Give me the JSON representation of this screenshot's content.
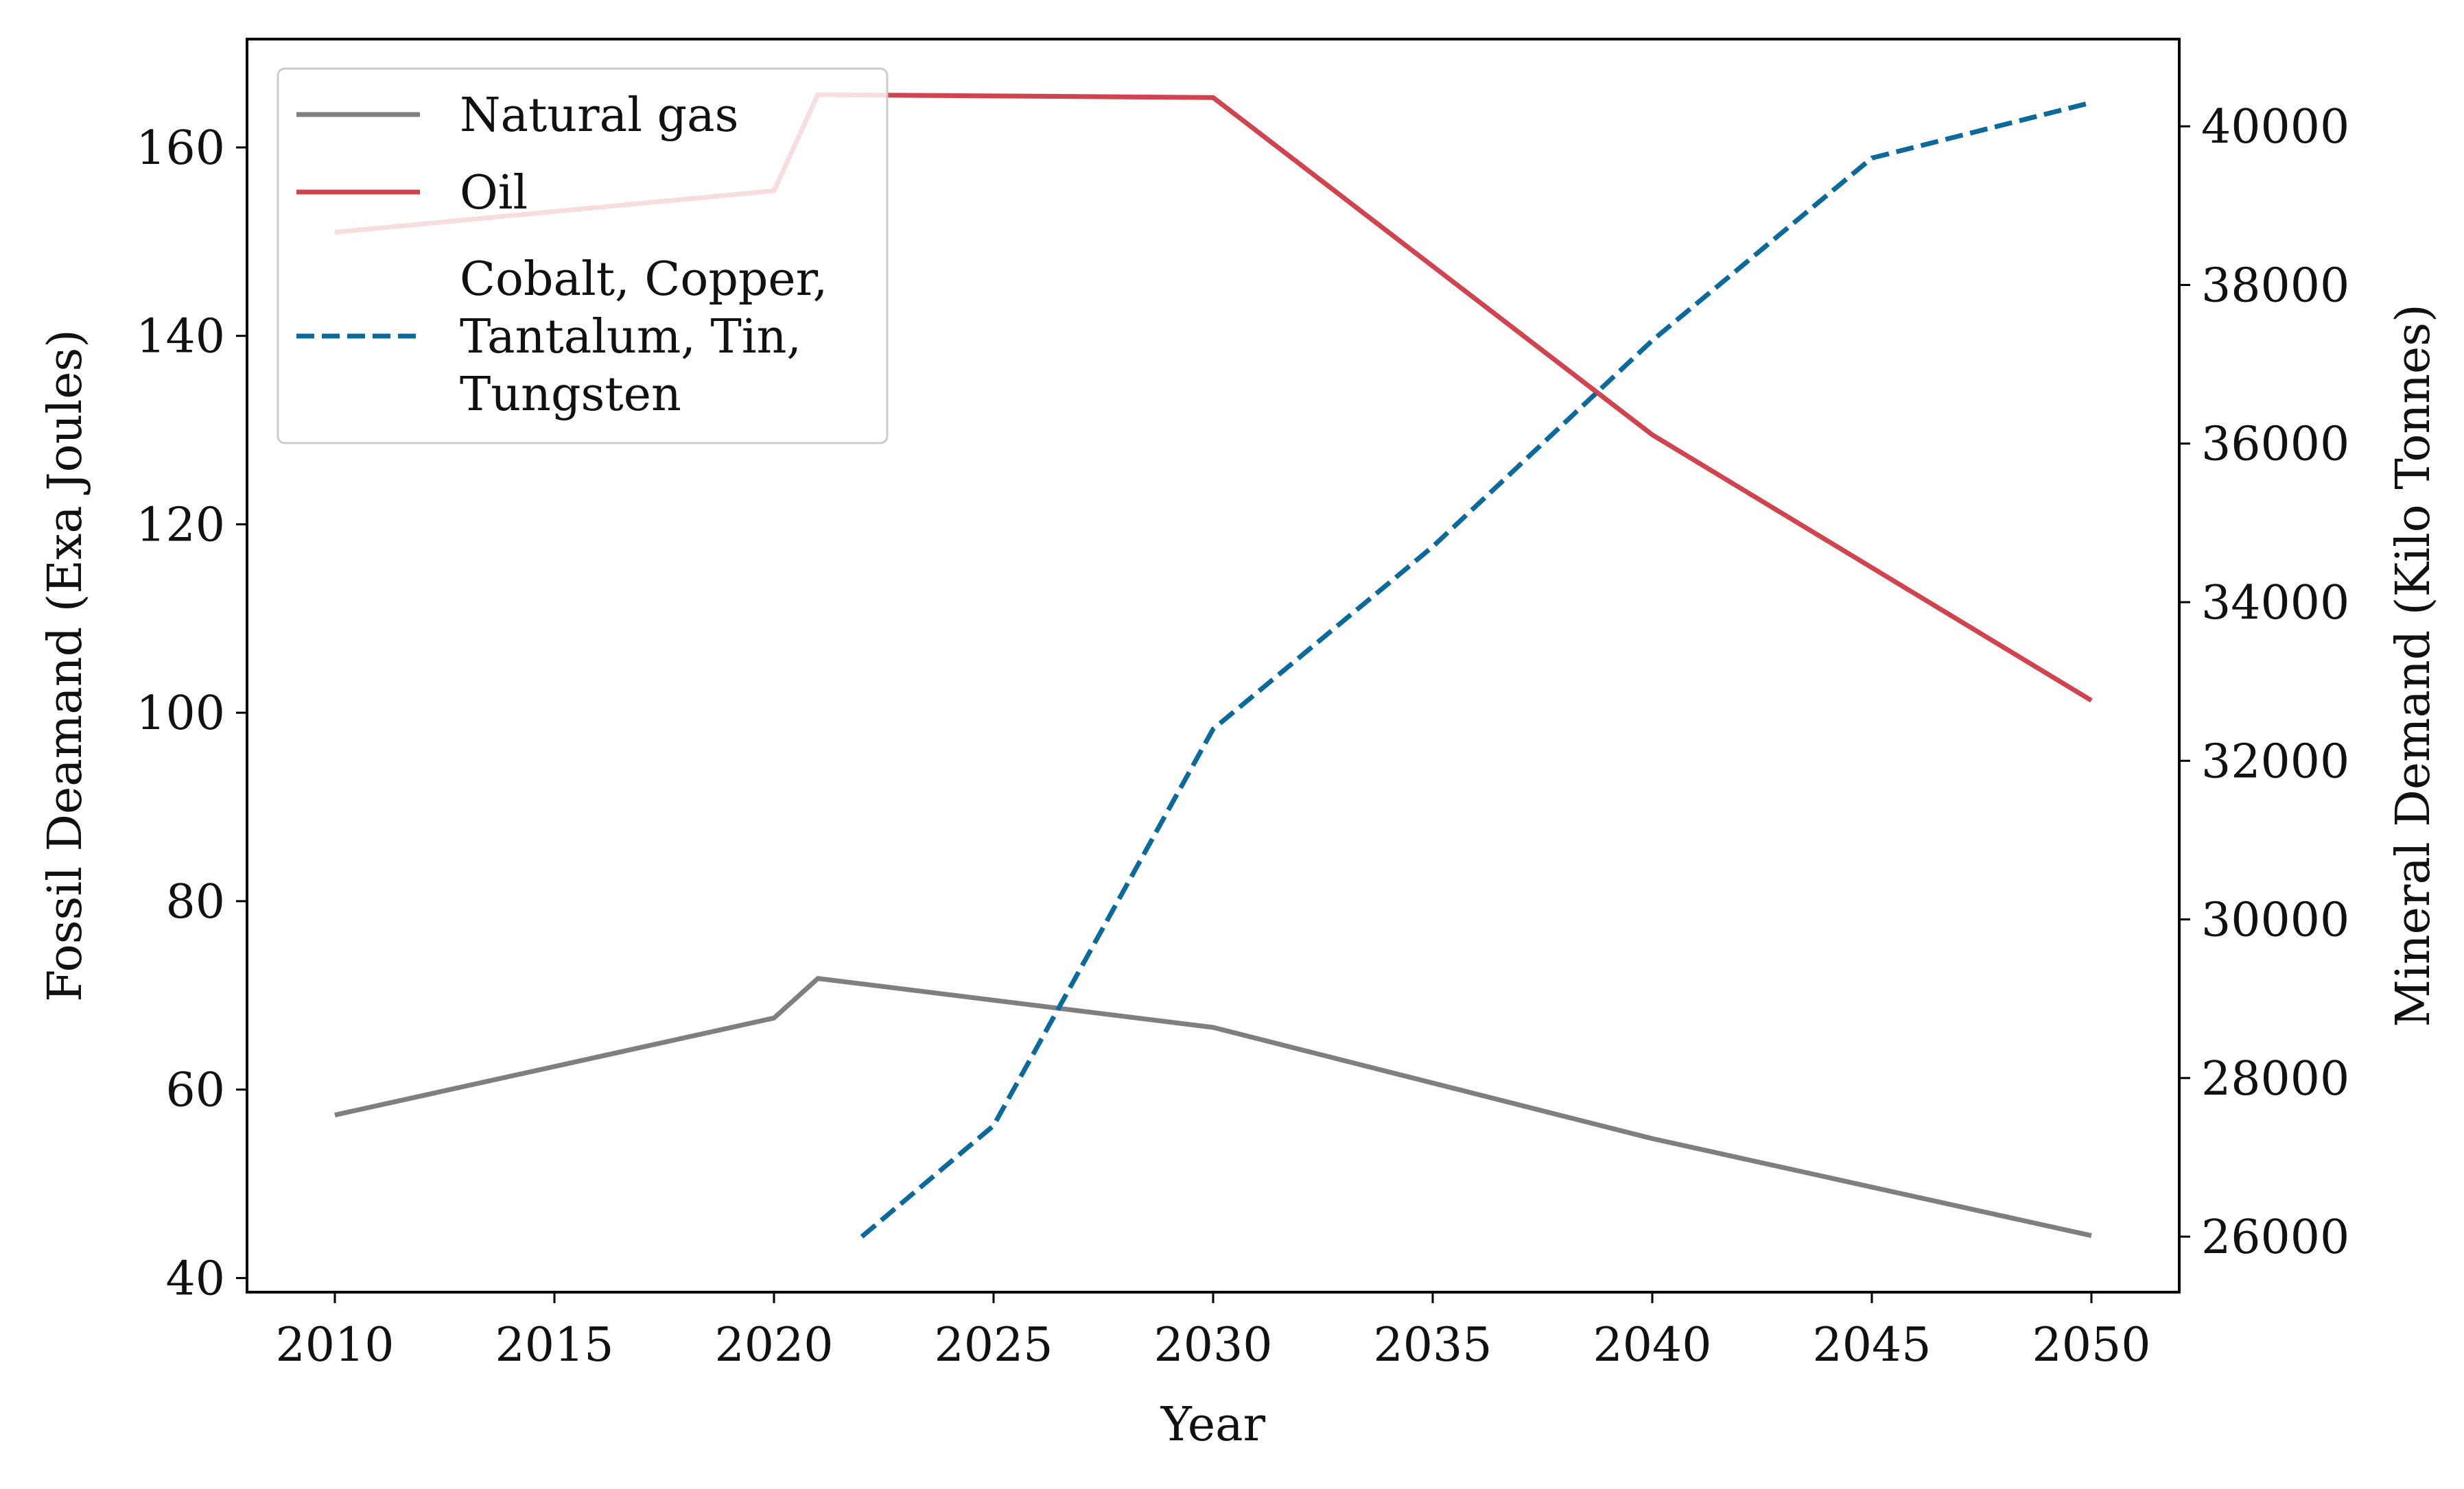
{
  "chart_data": {
    "type": "line",
    "xlabel": "Year",
    "ylabel_left": "Fossil Deamand (Exa Joules)",
    "ylabel_right": "Mineral Demand (Kilo Tonnes)",
    "x_ticks": [
      "2010",
      "2015",
      "2020",
      "2025",
      "2030",
      "2035",
      "2040",
      "2045",
      "2050"
    ],
    "y_left_ticks": [
      "40",
      "60",
      "80",
      "100",
      "120",
      "140",
      "160"
    ],
    "y_right_ticks": [
      "26000",
      "28000",
      "30000",
      "32000",
      "34000",
      "36000",
      "38000",
      "40000"
    ],
    "xlim": [
      2008,
      2052
    ],
    "ylim_left": [
      38.5,
      171.5
    ],
    "ylim_right": [
      25300,
      41100
    ],
    "grid": false,
    "legend_position": "top-left",
    "series": [
      {
        "name": "Natural gas",
        "axis": "left",
        "color": "#7f7f7f",
        "dash": "solid",
        "x": [
          2010,
          2020,
          2021,
          2030,
          2040,
          2050
        ],
        "y": [
          57.3,
          67.6,
          71.8,
          66.6,
          54.8,
          44.5
        ]
      },
      {
        "name": "Oil",
        "axis": "left",
        "color": "#d1444f",
        "dash": "solid",
        "x": [
          2010,
          2020,
          2021,
          2030,
          2040,
          2050
        ],
        "y": [
          151.0,
          155.4,
          165.6,
          165.3,
          129.5,
          101.3
        ]
      },
      {
        "name": "Cobalt, Copper, Tantalum, Tin, Tungsten",
        "name_lines": [
          "Cobalt, Copper,",
          "Tantalum, Tin,",
          "Tungsten"
        ],
        "axis": "right",
        "color": "#0a6a9c",
        "dash": "dashed",
        "x": [
          2022,
          2025,
          2030,
          2035,
          2040,
          2045,
          2050
        ],
        "y": [
          26000,
          27400,
          32400,
          34700,
          37300,
          39600,
          40300
        ]
      }
    ]
  }
}
